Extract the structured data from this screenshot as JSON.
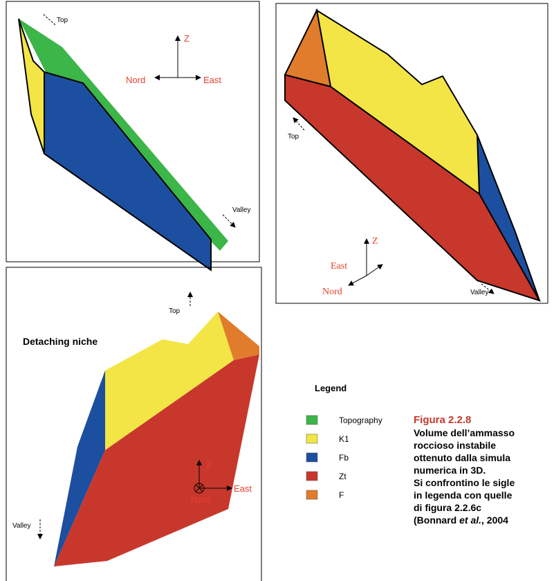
{
  "panels": [
    {
      "labels": {
        "top": "Top",
        "z": "Z",
        "left": "Nord",
        "right": "East",
        "valley": "Valley"
      }
    },
    {
      "labels": {
        "top": "Top",
        "z": "Z",
        "east": "East",
        "nord": "Nord",
        "valley": "Valley"
      }
    },
    {
      "title": "Detaching niche",
      "labels": {
        "top": "Top",
        "z": "Z",
        "nord": "Nord",
        "east": "East",
        "valley": "Valley"
      }
    }
  ],
  "legend": {
    "title": "Legend",
    "items": [
      {
        "label": "Topography",
        "color": "#3cb549"
      },
      {
        "label": "K1",
        "color": "#f2e545"
      },
      {
        "label": "Fb",
        "color": "#1c4f9f"
      },
      {
        "label": "Zt",
        "color": "#c8372c"
      },
      {
        "label": "F",
        "color": "#e07c2c"
      }
    ]
  },
  "caption": {
    "title": "Figura 2.2.8",
    "lines": [
      "Volume dell’ammasso",
      "roccioso instabile",
      "ottenuto dalla simula",
      "numerica in 3D.",
      "Si confrontino le sigle",
      "in legenda con quelle",
      "di figura 2.2.6c"
    ],
    "citation": {
      "before": "(Bonnard ",
      "italic": "et al.",
      "after": ", 2004"
    }
  }
}
